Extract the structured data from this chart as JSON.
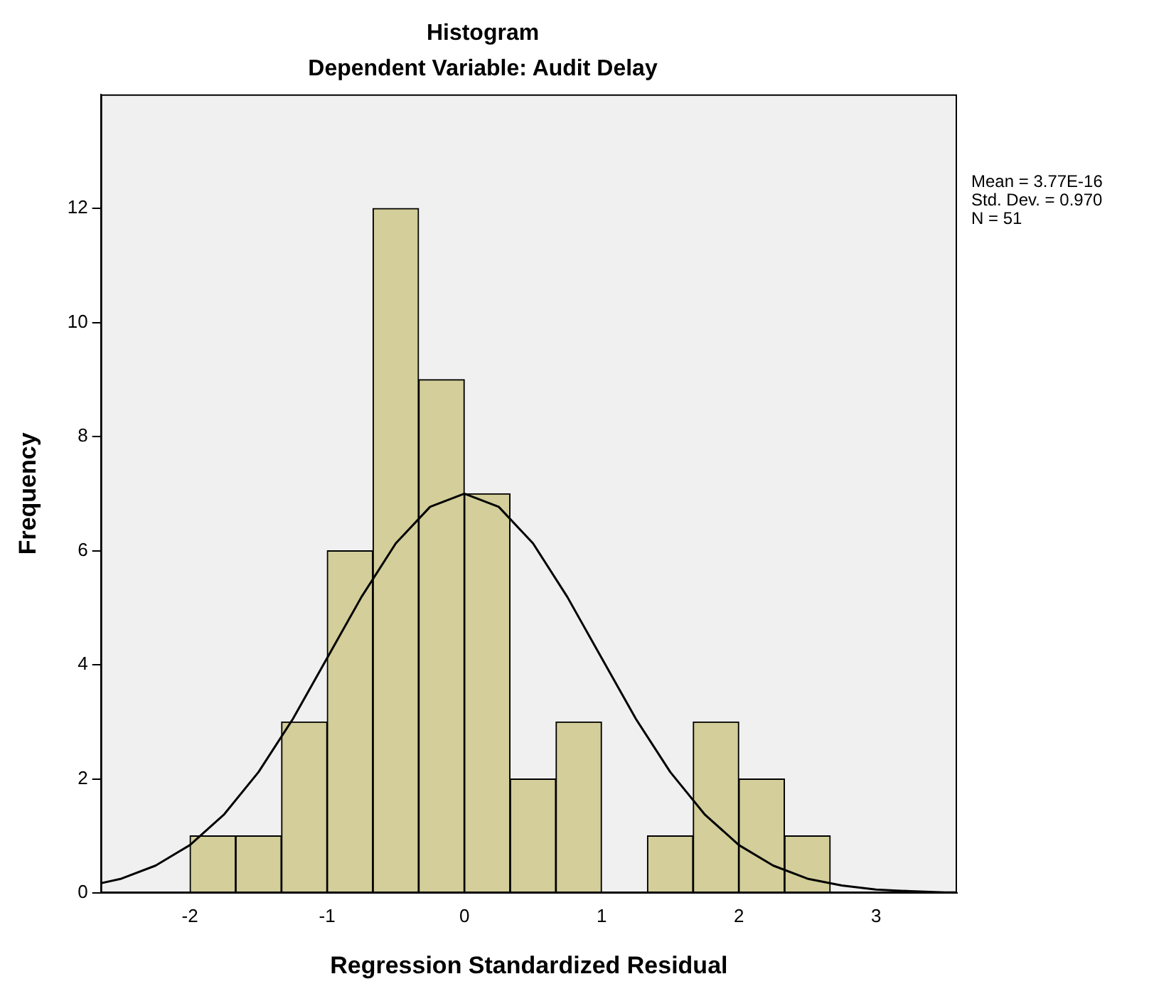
{
  "chart_data": {
    "type": "histogram",
    "title": "Histogram",
    "subtitle": "Dependent Variable: Audit Delay",
    "xlabel": "Regression Standardized Residual",
    "ylabel": "Frequency",
    "bins": [
      -2,
      -1.667,
      -1.333,
      -1,
      -0.667,
      -0.333,
      0,
      0.333,
      0.667,
      1,
      1.333,
      1.667,
      2,
      2.333,
      2.667
    ],
    "values": [
      1,
      1,
      3,
      6,
      12,
      9,
      7,
      2,
      3,
      0,
      1,
      3,
      2,
      1
    ],
    "color": "#d3ce9a",
    "series": [
      {
        "type": "line",
        "color": "#000000",
        "x": [
          -2.65,
          -2.5,
          -2.25,
          -2,
          -1.75,
          -1.5,
          -1.25,
          -1,
          -0.75,
          -0.5,
          -0.25,
          0,
          0.25,
          0.5,
          0.75,
          1,
          1.25,
          1.5,
          1.75,
          2,
          2.25,
          2.5,
          2.75,
          3,
          3.25,
          3.5,
          3.59
        ],
        "values": [
          0.17,
          0.25,
          0.48,
          0.84,
          1.38,
          2.12,
          3.05,
          4.12,
          5.19,
          6.13,
          6.77,
          7,
          6.77,
          6.13,
          5.19,
          4.12,
          3.05,
          2.12,
          1.38,
          0.84,
          0.48,
          0.25,
          0.13,
          0.06,
          0.03,
          0.01,
          0.01
        ]
      }
    ],
    "xlim": [
      -2.65,
      3.59
    ],
    "xticks": [
      -2,
      -1,
      0,
      1,
      2,
      3
    ],
    "ylim": [
      0,
      14
    ],
    "yticks": [
      0,
      2,
      4,
      6,
      8,
      10,
      12
    ],
    "grid": false,
    "legend": false,
    "marker": "none",
    "line_style": "solid",
    "annotations": [
      "Mean = 3.77E-16",
      "Std. Dev. = 0.970",
      "N = 51"
    ]
  }
}
